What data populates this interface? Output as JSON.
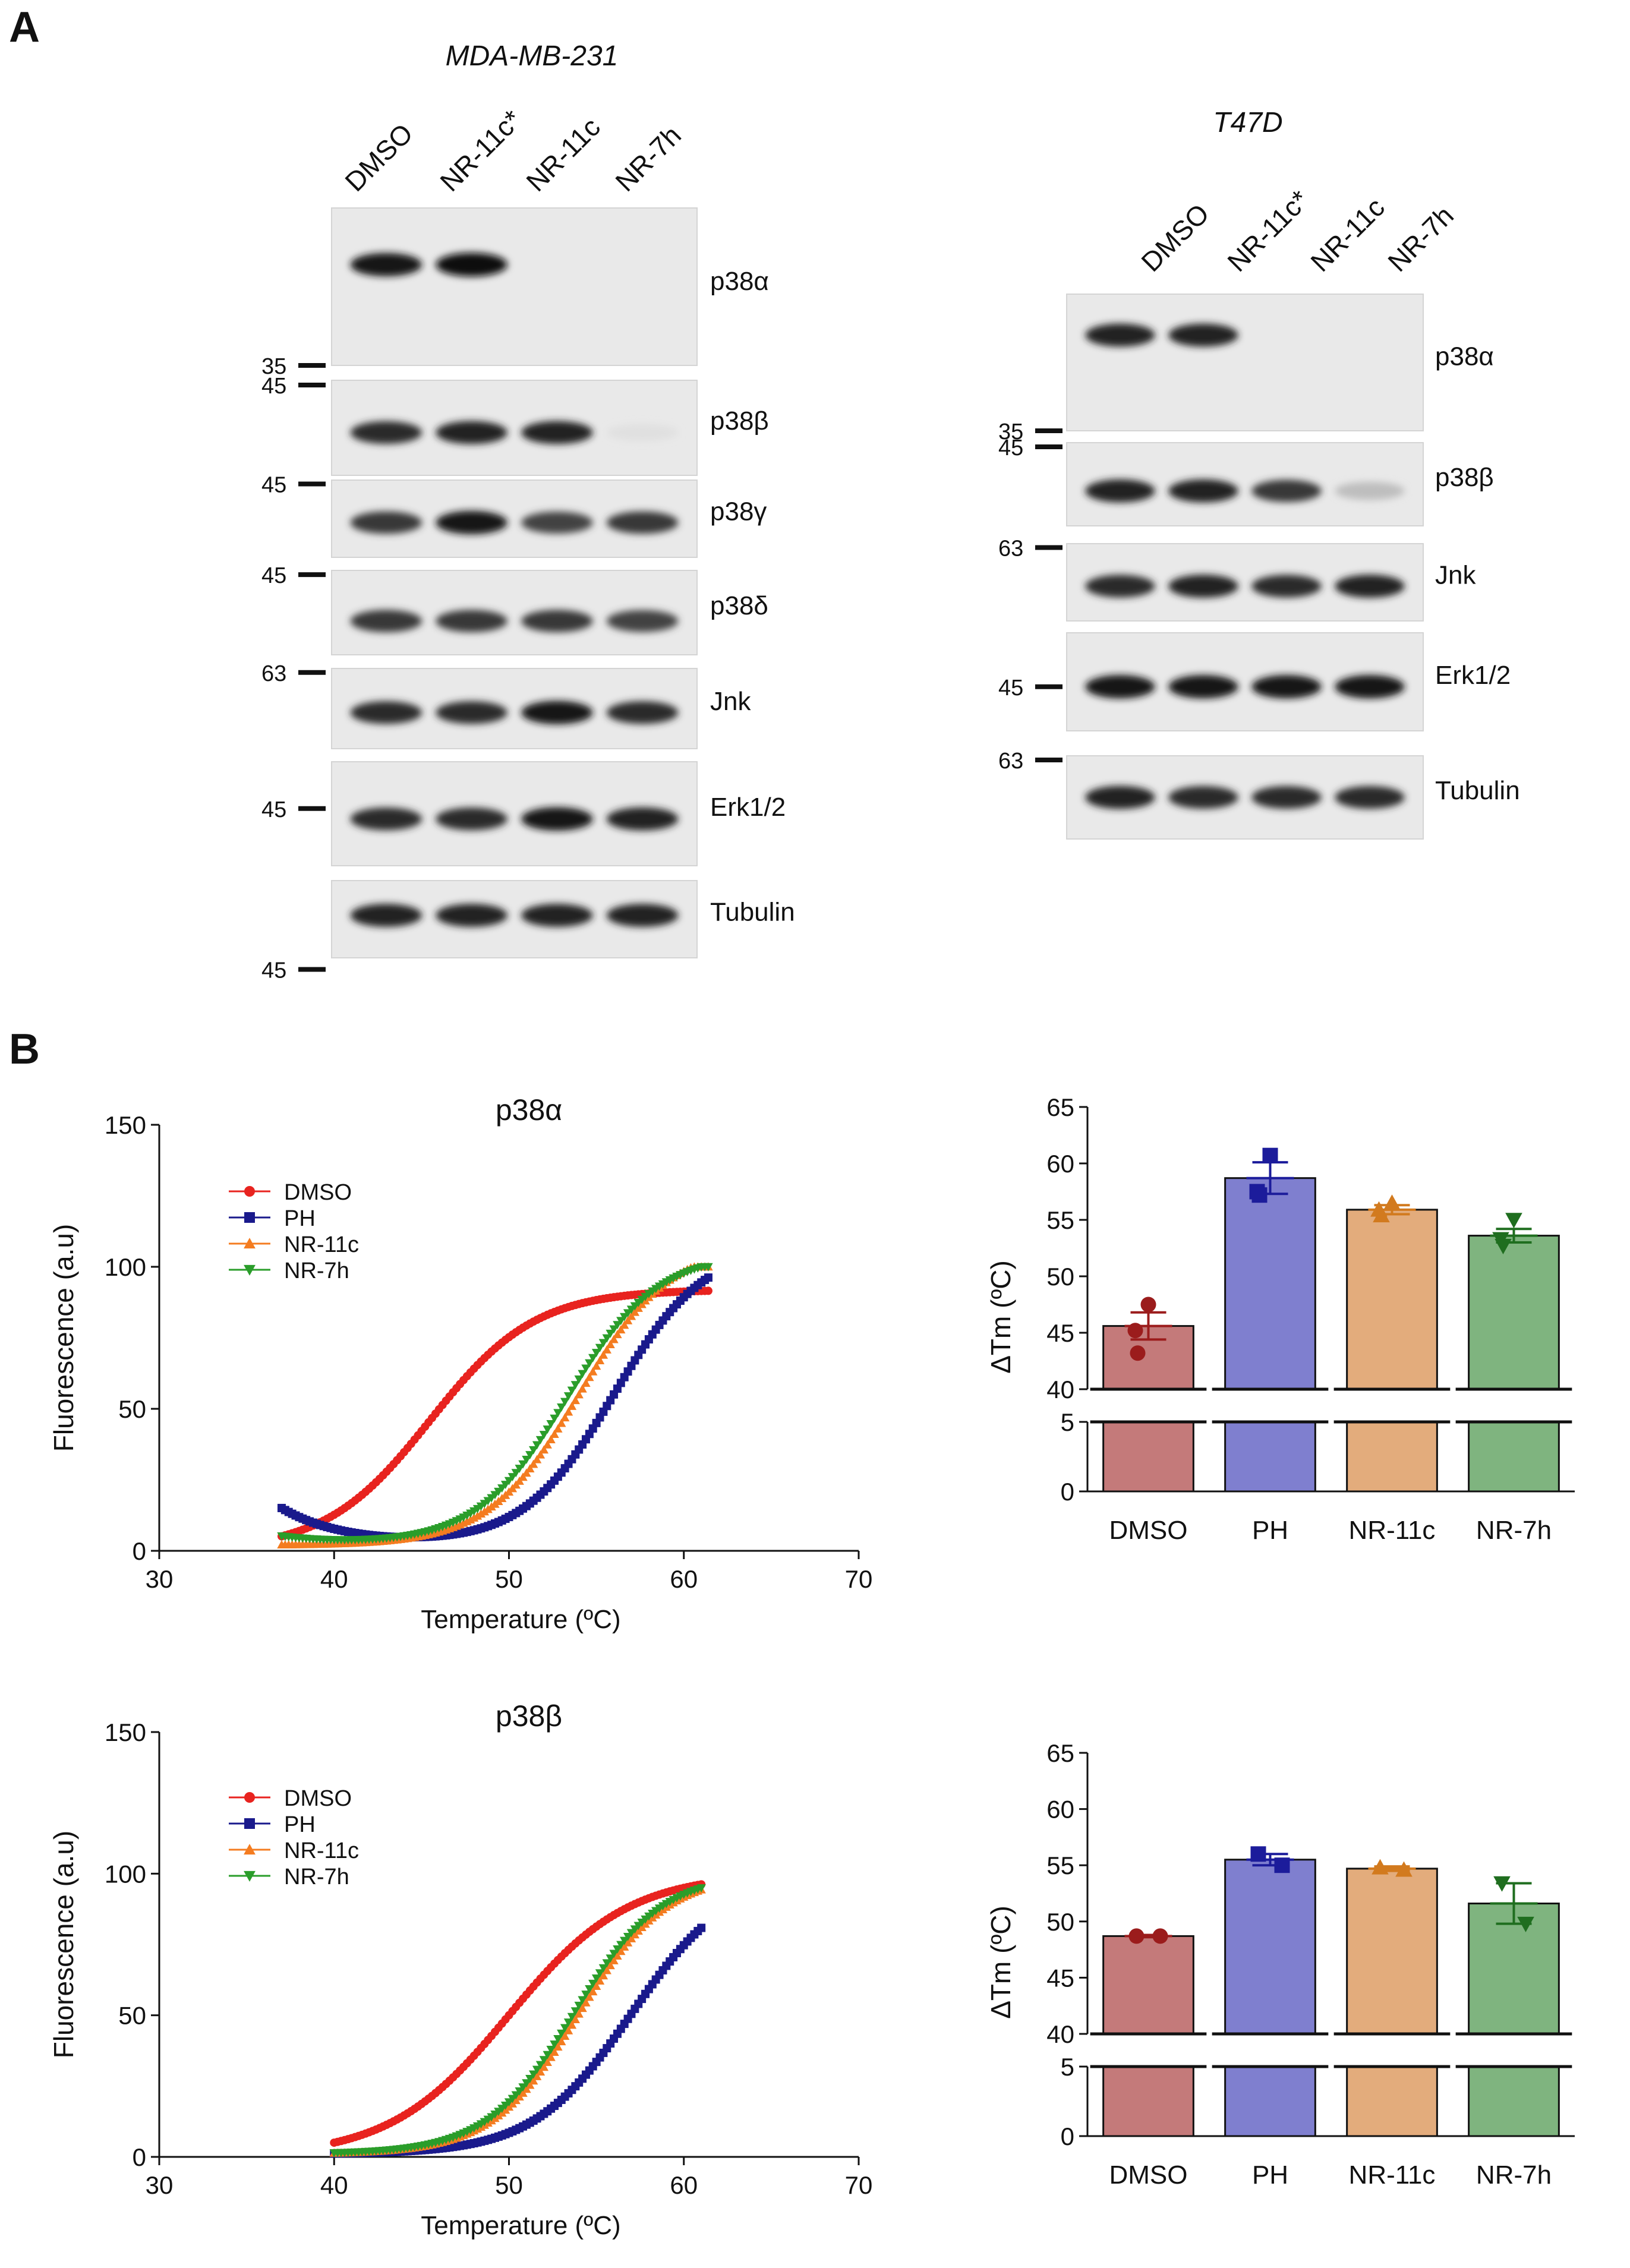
{
  "panel_a": {
    "label": "A",
    "blots": [
      {
        "cell_line": "MDA-MB-231",
        "lanes": [
          "DMSO",
          "NR-11c*",
          "NR-11c",
          "NR-7h"
        ],
        "rows": [
          {
            "protein": "p38α",
            "marker": "35",
            "intensity": [
              0.95,
              1.0,
              0.0,
              0.0
            ]
          },
          {
            "protein": "p38β",
            "marker": "45",
            "intensity": [
              0.85,
              0.9,
              0.9,
              0.05
            ]
          },
          {
            "protein": "p38γ",
            "marker": "45",
            "intensity": [
              0.8,
              0.95,
              0.75,
              0.8
            ]
          },
          {
            "protein": "p38δ",
            "marker": "45",
            "intensity": [
              0.8,
              0.8,
              0.8,
              0.75
            ]
          },
          {
            "protein": "Jnk",
            "marker": "63",
            "intensity": [
              0.85,
              0.85,
              0.95,
              0.85
            ]
          },
          {
            "protein": "Erk1/2",
            "marker": "45",
            "intensity": [
              0.85,
              0.85,
              0.95,
              0.9
            ]
          },
          {
            "protein": "Tubulin",
            "marker": "45",
            "intensity": [
              0.9,
              0.9,
              0.9,
              0.9
            ]
          }
        ]
      },
      {
        "cell_line": "T47D",
        "lanes": [
          "DMSO",
          "NR-11c*",
          "NR-11c",
          "NR-7h"
        ],
        "rows": [
          {
            "protein": "p38α",
            "marker": "35",
            "intensity": [
              0.9,
              0.9,
              0.0,
              0.0
            ]
          },
          {
            "protein": "p38β",
            "marker": "45",
            "intensity": [
              0.9,
              0.9,
              0.8,
              0.2
            ]
          },
          {
            "protein": "Jnk",
            "marker": "63",
            "intensity": [
              0.85,
              0.9,
              0.85,
              0.9
            ]
          },
          {
            "protein": "Erk1/2",
            "marker": "45",
            "intensity": [
              0.95,
              0.95,
              0.95,
              0.95
            ]
          },
          {
            "protein": "Tubulin",
            "marker": "63",
            "intensity": [
              0.9,
              0.85,
              0.85,
              0.85
            ]
          }
        ]
      }
    ]
  },
  "panel_b": {
    "label": "B"
  },
  "chart_data": [
    {
      "type": "scatter",
      "title": "p38α",
      "xlabel": "Temperature (ºC)",
      "ylabel": "Fluorescence (a.u)",
      "xlim": [
        30,
        70
      ],
      "ylim": [
        0,
        150
      ],
      "xticks": [
        30,
        40,
        50,
        60,
        70
      ],
      "yticks": [
        0,
        50,
        100,
        150
      ],
      "legend_position": "top-left",
      "series": [
        {
          "name": "DMSO",
          "marker": "circle",
          "color": "#e8231f",
          "x_range": [
            37,
            61.5
          ],
          "bottom": 0,
          "top": 92,
          "midpoint": 45.5,
          "slope": 3.0
        },
        {
          "name": "PH",
          "marker": "square",
          "color": "#1a1a8c",
          "x_range": [
            37,
            61.5
          ],
          "bottom": 2,
          "top": 108,
          "midpoint": 56.0,
          "slope": 2.6,
          "start_value": 15
        },
        {
          "name": "NR-11c",
          "marker": "triangle-up",
          "color": "#f47c20",
          "x_range": [
            37,
            61.5
          ],
          "bottom": 2,
          "top": 108,
          "midpoint": 54.0,
          "slope": 2.6
        },
        {
          "name": "NR-7h",
          "marker": "triangle-down",
          "color": "#2a9d2a",
          "x_range": [
            37,
            61.5
          ],
          "bottom": 2,
          "top": 105,
          "midpoint": 53.3,
          "slope": 2.6,
          "start_value": 5
        }
      ]
    },
    {
      "type": "bar",
      "ylabel": "ΔTm (ºC)",
      "categories": [
        "DMSO",
        "PH",
        "NR-11c",
        "NR-7h"
      ],
      "values": [
        45.6,
        58.7,
        55.9,
        53.6
      ],
      "errors": [
        1.2,
        1.4,
        0.4,
        0.6
      ],
      "points": [
        [
          47.5,
          45.2,
          43.2
        ],
        [
          60.7,
          57.5,
          57.2
        ],
        [
          56.5,
          55.9,
          55.4
        ],
        [
          55.0,
          53.3,
          52.7
        ]
      ],
      "colors": [
        "#c47a7a",
        "#7f7fcf",
        "#e3ac7c",
        "#7fb47f"
      ],
      "point_colors": [
        "#9b1c1c",
        "#1c1c9b",
        "#d27a1e",
        "#1f6e1f"
      ],
      "point_markers": [
        "circle",
        "square",
        "triangle-up",
        "triangle-down"
      ],
      "ylim_upper": [
        40,
        65
      ],
      "ylim_lower": [
        0,
        5
      ],
      "yticks_upper": [
        40,
        45,
        50,
        55,
        60,
        65
      ],
      "yticks_lower": [
        0,
        5
      ]
    },
    {
      "type": "scatter",
      "title": "p38β",
      "xlabel": "Temperature (ºC)",
      "ylabel": "Fluorescence (a.u)",
      "xlim": [
        30,
        70
      ],
      "ylim": [
        0,
        150
      ],
      "xticks": [
        30,
        40,
        50,
        60,
        70
      ],
      "yticks": [
        0,
        50,
        100,
        150
      ],
      "legend_position": "top-left",
      "series": [
        {
          "name": "DMSO",
          "marker": "circle",
          "color": "#e8231f",
          "x_range": [
            40,
            61
          ],
          "bottom": 0,
          "top": 100,
          "midpoint": 50.0,
          "slope": 3.4
        },
        {
          "name": "PH",
          "marker": "square",
          "color": "#1a1a8c",
          "x_range": [
            40,
            61
          ],
          "bottom": 1,
          "top": 100,
          "midpoint": 57.0,
          "slope": 2.8
        },
        {
          "name": "NR-11c",
          "marker": "triangle-up",
          "color": "#f47c20",
          "x_range": [
            40,
            61
          ],
          "bottom": 1,
          "top": 100,
          "midpoint": 54.0,
          "slope": 2.5
        },
        {
          "name": "NR-7h",
          "marker": "triangle-down",
          "color": "#2a9d2a",
          "x_range": [
            40,
            61
          ],
          "bottom": 1,
          "top": 100,
          "midpoint": 53.7,
          "slope": 2.5
        }
      ]
    },
    {
      "type": "bar",
      "ylabel": "ΔTm (ºC)",
      "categories": [
        "DMSO",
        "PH",
        "NR-11c",
        "NR-7h"
      ],
      "values": [
        48.7,
        55.5,
        54.7,
        51.6
      ],
      "errors": [
        0.1,
        0.5,
        0.2,
        1.8
      ],
      "points": [
        [
          48.7,
          48.7
        ],
        [
          56.0,
          55.0
        ],
        [
          54.8,
          54.6
        ],
        [
          53.4,
          49.8
        ]
      ],
      "colors": [
        "#c47a7a",
        "#7f7fcf",
        "#e3ac7c",
        "#7fb47f"
      ],
      "point_colors": [
        "#9b1c1c",
        "#1c1c9b",
        "#d27a1e",
        "#1f6e1f"
      ],
      "point_markers": [
        "circle",
        "square",
        "triangle-up",
        "triangle-down"
      ],
      "ylim_upper": [
        40,
        65
      ],
      "ylim_lower": [
        0,
        5
      ],
      "yticks_upper": [
        40,
        45,
        50,
        55,
        60,
        65
      ],
      "yticks_lower": [
        0,
        5
      ]
    }
  ]
}
